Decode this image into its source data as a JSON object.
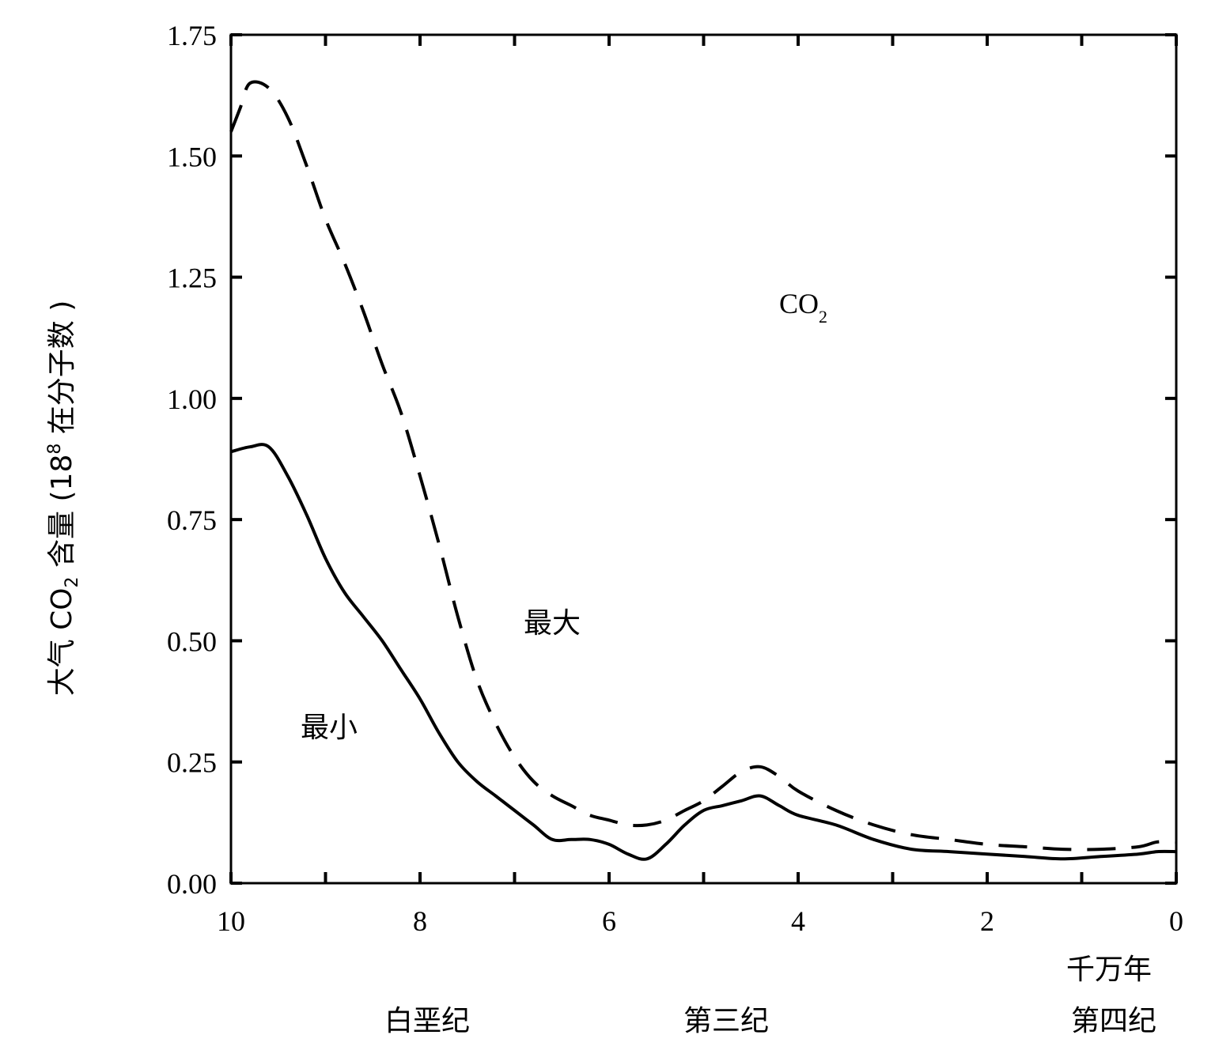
{
  "chart_data": {
    "type": "line",
    "title": "",
    "ylabel": "大气 CO₂ 含量 (18⁸ 在分子数 )",
    "ylabel_main": "大气 CO",
    "ylabel_sub": "2",
    "ylabel_rest": " 含量 (18",
    "ylabel_sup": "8",
    "ylabel_end": " 在分子数 )",
    "xlabel": "千万年",
    "xlim": [
      10,
      0
    ],
    "ylim": [
      0,
      1.75
    ],
    "x_ticks": [
      "10",
      "8",
      "6",
      "4",
      "2",
      "0"
    ],
    "y_ticks": [
      "0.00",
      "0.25",
      "0.50",
      "0.75",
      "1.00",
      "1.25",
      "1.50",
      "1.75"
    ],
    "grid": false,
    "periods": [
      "白垩纪",
      "第三纪",
      "第四纪"
    ],
    "annotations": {
      "co2_main": "CO",
      "co2_sub": "2",
      "max_label": "最大",
      "min_label": "最小"
    },
    "series": [
      {
        "name": "最大",
        "style": "dashed",
        "x": [
          10.0,
          9.9,
          9.8,
          9.6,
          9.4,
          9.2,
          9.0,
          8.8,
          8.6,
          8.4,
          8.2,
          8.0,
          7.8,
          7.6,
          7.4,
          7.2,
          7.0,
          6.8,
          6.6,
          6.4,
          6.2,
          6.0,
          5.8,
          5.6,
          5.4,
          5.2,
          5.0,
          4.8,
          4.6,
          4.4,
          4.2,
          4.0,
          3.6,
          3.2,
          2.8,
          2.4,
          2.0,
          1.6,
          1.2,
          0.8,
          0.4,
          0.2,
          0.0
        ],
        "values": [
          1.55,
          1.6,
          1.65,
          1.64,
          1.58,
          1.48,
          1.37,
          1.28,
          1.18,
          1.07,
          0.97,
          0.84,
          0.7,
          0.55,
          0.42,
          0.33,
          0.26,
          0.21,
          0.18,
          0.16,
          0.14,
          0.13,
          0.12,
          0.12,
          0.13,
          0.15,
          0.17,
          0.2,
          0.23,
          0.24,
          0.22,
          0.19,
          0.15,
          0.12,
          0.1,
          0.09,
          0.08,
          0.075,
          0.07,
          0.07,
          0.075,
          0.085,
          0.085
        ]
      },
      {
        "name": "最小",
        "style": "solid",
        "x": [
          10.0,
          9.8,
          9.6,
          9.4,
          9.2,
          9.0,
          8.8,
          8.6,
          8.4,
          8.2,
          8.0,
          7.8,
          7.6,
          7.4,
          7.2,
          7.0,
          6.8,
          6.6,
          6.4,
          6.2,
          6.0,
          5.8,
          5.6,
          5.4,
          5.2,
          5.0,
          4.8,
          4.6,
          4.4,
          4.2,
          4.0,
          3.6,
          3.2,
          2.8,
          2.4,
          2.0,
          1.6,
          1.2,
          0.8,
          0.4,
          0.2,
          0.0
        ],
        "values": [
          0.89,
          0.9,
          0.9,
          0.84,
          0.76,
          0.67,
          0.6,
          0.55,
          0.5,
          0.44,
          0.38,
          0.31,
          0.25,
          0.21,
          0.18,
          0.15,
          0.12,
          0.09,
          0.09,
          0.09,
          0.08,
          0.06,
          0.05,
          0.08,
          0.12,
          0.15,
          0.16,
          0.17,
          0.18,
          0.16,
          0.14,
          0.12,
          0.09,
          0.07,
          0.065,
          0.06,
          0.055,
          0.05,
          0.055,
          0.06,
          0.065,
          0.065
        ]
      }
    ]
  }
}
